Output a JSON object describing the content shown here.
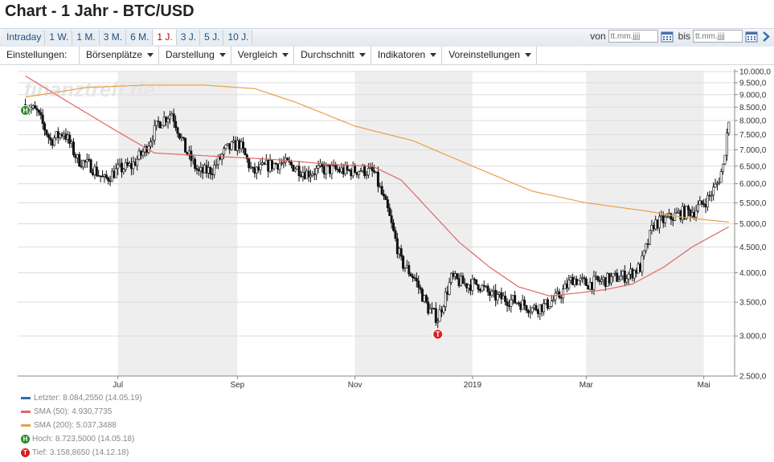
{
  "header": {
    "title": "Chart - 1 Jahr - BTC/USD"
  },
  "range_tabs": [
    {
      "label": "Intraday",
      "active": false
    },
    {
      "label": "1 W.",
      "active": false
    },
    {
      "label": "1 M.",
      "active": false
    },
    {
      "label": "3 M.",
      "active": false
    },
    {
      "label": "6 M.",
      "active": false
    },
    {
      "label": "1 J.",
      "active": true
    },
    {
      "label": "3 J.",
      "active": false
    },
    {
      "label": "5 J.",
      "active": false
    },
    {
      "label": "10 J.",
      "active": false
    }
  ],
  "date_range": {
    "from_label": "von",
    "from_placeholder": "tt.mm.jjjj",
    "to_label": "bis",
    "to_placeholder": "tt.mm.jjjj"
  },
  "settings": {
    "label": "Einstellungen:",
    "menus": [
      "Börsenplätze",
      "Darstellung",
      "Vergleich",
      "Durchschnitt",
      "Indikatoren",
      "Voreinstellungen"
    ]
  },
  "watermark": "finanztreff.de:",
  "colors": {
    "sma50": "#e06666",
    "sma200": "#e8a04a",
    "last": "#2e6fb5",
    "high": "#2a8a2a",
    "low": "#d62020",
    "shade": "#eeeeee"
  },
  "legend": {
    "last": "Letzter: 8.084,2550 (14.05.19)",
    "sma50": "SMA (50): 4.930,7735",
    "sma200": "SMA (200): 5.037,3488",
    "high": "Hoch: 8.723,5000 (14.05.18)",
    "low": "Tief: 3.158,8650 (14.12.18)"
  },
  "chart_data": {
    "type": "candlestick",
    "x_ticks": [
      "Jul",
      "Sep",
      "Nov",
      "2019",
      "Mar",
      "Mai"
    ],
    "y_ticks": [
      10000,
      9500,
      9000,
      8500,
      8000,
      7500,
      7000,
      6500,
      6000,
      5500,
      5000,
      4500,
      4000,
      3500,
      3000,
      2500
    ],
    "y_tick_labels": [
      "10.000,0",
      "9.500,0",
      "9.000,0",
      "8.500,0",
      "8.000,0",
      "7.500,0",
      "7.000,0",
      "6.500,0",
      "6.000,0",
      "5.500,0",
      "5.000,0",
      "4.500,0",
      "4.000,0",
      "3.500,0",
      "3.000,0",
      "2.500,0"
    ],
    "y_scale": "log",
    "ylim": [
      2500,
      10000
    ],
    "grid": true,
    "shaded_months": [
      "Jul",
      "Nov",
      "Mar"
    ],
    "price_path": [
      [
        "2018-05-14",
        8600
      ],
      [
        "2018-05-20",
        8300
      ],
      [
        "2018-05-27",
        7300
      ],
      [
        "2018-06-03",
        7600
      ],
      [
        "2018-06-10",
        6700
      ],
      [
        "2018-06-17",
        6500
      ],
      [
        "2018-06-24",
        6100
      ],
      [
        "2018-07-01",
        6400
      ],
      [
        "2018-07-08",
        6500
      ],
      [
        "2018-07-15",
        7000
      ],
      [
        "2018-07-22",
        7900
      ],
      [
        "2018-07-29",
        8300
      ],
      [
        "2018-08-05",
        7000
      ],
      [
        "2018-08-12",
        6300
      ],
      [
        "2018-08-19",
        6400
      ],
      [
        "2018-08-26",
        7000
      ],
      [
        "2018-09-02",
        7200
      ],
      [
        "2018-09-09",
        6300
      ],
      [
        "2018-09-16",
        6500
      ],
      [
        "2018-09-23",
        6600
      ],
      [
        "2018-09-30",
        6500
      ],
      [
        "2018-10-07",
        6300
      ],
      [
        "2018-10-14",
        6400
      ],
      [
        "2018-10-21",
        6400
      ],
      [
        "2018-10-28",
        6350
      ],
      [
        "2018-11-04",
        6400
      ],
      [
        "2018-11-11",
        6300
      ],
      [
        "2018-11-18",
        5300
      ],
      [
        "2018-11-25",
        4200
      ],
      [
        "2018-12-02",
        3900
      ],
      [
        "2018-12-09",
        3400
      ],
      [
        "2018-12-14",
        3250
      ],
      [
        "2018-12-21",
        3900
      ],
      [
        "2018-12-28",
        3800
      ],
      [
        "2019-01-04",
        3800
      ],
      [
        "2019-01-11",
        3600
      ],
      [
        "2019-01-18",
        3550
      ],
      [
        "2019-01-25",
        3500
      ],
      [
        "2019-02-01",
        3400
      ],
      [
        "2019-02-08",
        3450
      ],
      [
        "2019-02-15",
        3600
      ],
      [
        "2019-02-22",
        3900
      ],
      [
        "2019-03-01",
        3800
      ],
      [
        "2019-03-08",
        3850
      ],
      [
        "2019-03-15",
        3900
      ],
      [
        "2019-03-22",
        3950
      ],
      [
        "2019-03-29",
        4100
      ],
      [
        "2019-04-05",
        5000
      ],
      [
        "2019-04-12",
        5100
      ],
      [
        "2019-04-19",
        5250
      ],
      [
        "2019-04-26",
        5300
      ],
      [
        "2019-05-03",
        5600
      ],
      [
        "2019-05-08",
        6000
      ],
      [
        "2019-05-11",
        6500
      ],
      [
        "2019-05-12",
        7000
      ],
      [
        "2019-05-14",
        8084
      ]
    ],
    "series": [
      {
        "name": "SMA (50)",
        "values": [
          [
            "2018-05-14",
            9800
          ],
          [
            "2018-06-01",
            8900
          ],
          [
            "2018-07-01",
            7600
          ],
          [
            "2018-07-20",
            6900
          ],
          [
            "2018-08-20",
            6800
          ],
          [
            "2018-09-20",
            6700
          ],
          [
            "2018-10-20",
            6550
          ],
          [
            "2018-11-10",
            6500
          ],
          [
            "2018-11-25",
            6100
          ],
          [
            "2018-12-10",
            5300
          ],
          [
            "2018-12-25",
            4600
          ],
          [
            "2019-01-10",
            4100
          ],
          [
            "2019-01-25",
            3750
          ],
          [
            "2019-02-10",
            3600
          ],
          [
            "2019-02-25",
            3650
          ],
          [
            "2019-03-10",
            3700
          ],
          [
            "2019-03-25",
            3800
          ],
          [
            "2019-04-10",
            4100
          ],
          [
            "2019-04-25",
            4500
          ],
          [
            "2019-05-14",
            4931
          ]
        ]
      },
      {
        "name": "SMA (200)",
        "values": [
          [
            "2018-05-14",
            8900
          ],
          [
            "2018-06-15",
            9300
          ],
          [
            "2018-07-15",
            9400
          ],
          [
            "2018-08-15",
            9400
          ],
          [
            "2018-09-10",
            9250
          ],
          [
            "2018-10-01",
            8700
          ],
          [
            "2018-11-01",
            7800
          ],
          [
            "2018-12-01",
            7300
          ],
          [
            "2019-01-01",
            6500
          ],
          [
            "2019-02-01",
            5800
          ],
          [
            "2019-03-01",
            5500
          ],
          [
            "2019-04-01",
            5300
          ],
          [
            "2019-04-20",
            5150
          ],
          [
            "2019-05-14",
            5037
          ]
        ]
      }
    ],
    "annotations": [
      {
        "label": "H",
        "date": "2018-05-14",
        "value": 8723.5
      },
      {
        "label": "T",
        "date": "2018-12-14",
        "value": 3158.865
      }
    ]
  }
}
